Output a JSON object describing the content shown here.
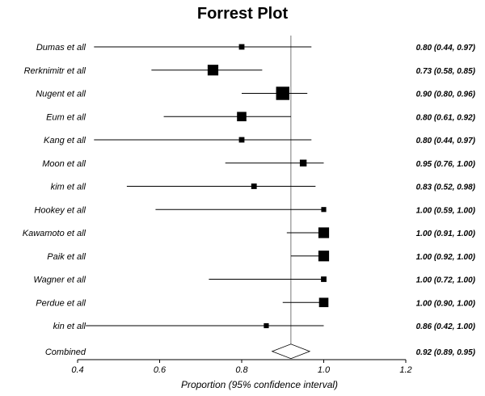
{
  "chart_data": {
    "type": "forest",
    "title": "Forrest Plot",
    "xlabel": "Proportion (95% confidence interval)",
    "xlim": [
      0.4,
      1.2
    ],
    "xticks": [
      "0.4",
      "0.6",
      "0.8",
      "1.0",
      "1.2"
    ],
    "xtick_values": [
      0.4,
      0.6,
      0.8,
      1.0,
      1.2
    ],
    "reference_line": 0.92,
    "studies": [
      {
        "label": "Dumas et all",
        "estimate": 0.8,
        "lower": 0.44,
        "upper": 0.97,
        "text": "0.80 (0.44, 0.97)",
        "weight": 1
      },
      {
        "label": "Rerknimitr et all",
        "estimate": 0.73,
        "lower": 0.58,
        "upper": 0.85,
        "text": "0.73 (0.58, 0.85)",
        "weight": 3
      },
      {
        "label": "Nugent et all",
        "estimate": 0.9,
        "lower": 0.8,
        "upper": 0.96,
        "text": "0.90 (0.80, 0.96)",
        "weight": 4
      },
      {
        "label": "Eum et all",
        "estimate": 0.8,
        "lower": 0.61,
        "upper": 0.92,
        "text": "0.80 (0.61, 0.92)",
        "weight": 2.5
      },
      {
        "label": "Kang et all",
        "estimate": 0.8,
        "lower": 0.44,
        "upper": 0.97,
        "text": "0.80 (0.44, 0.97)",
        "weight": 1
      },
      {
        "label": "Moon et all",
        "estimate": 0.95,
        "lower": 0.76,
        "upper": 1.0,
        "text": "0.95 (0.76, 1.00)",
        "weight": 1.5
      },
      {
        "label": "kim et all",
        "estimate": 0.83,
        "lower": 0.52,
        "upper": 0.98,
        "text": "0.83 (0.52, 0.98)",
        "weight": 1
      },
      {
        "label": "Hookey et all",
        "estimate": 1.0,
        "lower": 0.59,
        "upper": 1.0,
        "text": "1.00 (0.59, 1.00)",
        "weight": 0.8
      },
      {
        "label": "Kawamoto et all",
        "estimate": 1.0,
        "lower": 0.91,
        "upper": 1.0,
        "text": "1.00 (0.91, 1.00)",
        "weight": 3
      },
      {
        "label": "Paik et all",
        "estimate": 1.0,
        "lower": 0.92,
        "upper": 1.0,
        "text": "1.00 (0.92, 1.00)",
        "weight": 3
      },
      {
        "label": "Wagner et all",
        "estimate": 1.0,
        "lower": 0.72,
        "upper": 1.0,
        "text": "1.00 (0.72, 1.00)",
        "weight": 1
      },
      {
        "label": "Perdue et all",
        "estimate": 1.0,
        "lower": 0.9,
        "upper": 1.0,
        "text": "1.00 (0.90, 1.00)",
        "weight": 2.5
      },
      {
        "label": "kin et all",
        "estimate": 0.86,
        "lower": 0.42,
        "upper": 1.0,
        "text": "0.86 (0.42, 1.00)",
        "weight": 0.8
      }
    ],
    "combined": {
      "label": "Combined",
      "estimate": 0.92,
      "lower": 0.89,
      "upper": 0.95,
      "text": "0.92 (0.89, 0.95)"
    }
  }
}
